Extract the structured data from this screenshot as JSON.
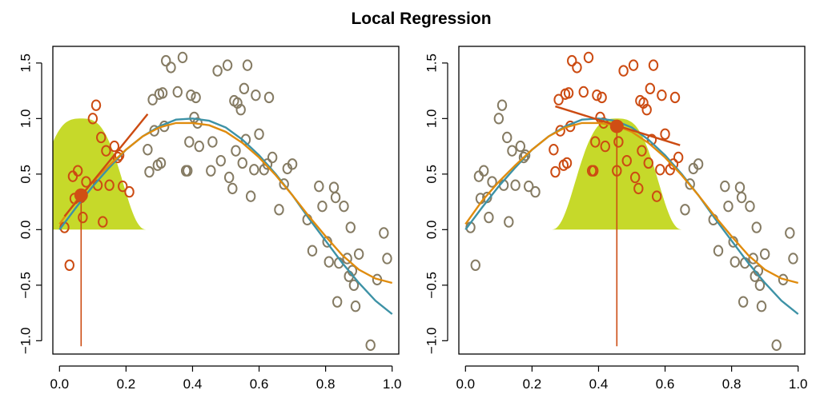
{
  "title": "Local Regression",
  "colors": {
    "data_points": "#857b63",
    "neighborhood_points": "#cc4b12",
    "true_curve": "#3d92a6",
    "fit_curve": "#e08c0e",
    "kernel_fill": "#c6d92a",
    "local_fit": "#cc4b12",
    "target_point": "#d04e14"
  },
  "chart_data": [
    {
      "type": "scatter",
      "title": "",
      "xlabel": "",
      "ylabel": "",
      "xlim": [
        -0.02,
        1.02
      ],
      "ylim": [
        -1.12,
        1.65
      ],
      "xticks": [
        "0.0",
        "0.2",
        "0.4",
        "0.6",
        "0.8",
        "1.0"
      ],
      "yticks": [
        "-1.0",
        "-0.5",
        "0.0",
        "0.5",
        "1.0",
        "1.5"
      ],
      "grid": false,
      "target_x": 0.065,
      "target_y": 0.31,
      "kernel": {
        "center": 0.065,
        "width": 0.2
      },
      "local_line": {
        "x": [
          0.015,
          0.265
        ],
        "y": [
          0.12,
          1.04
        ]
      }
    },
    {
      "type": "scatter",
      "title": "",
      "xlabel": "",
      "ylabel": "",
      "xlim": [
        -0.02,
        1.02
      ],
      "ylim": [
        -1.12,
        1.65
      ],
      "xticks": [
        "0.0",
        "0.2",
        "0.4",
        "0.6",
        "0.8",
        "1.0"
      ],
      "yticks": [
        "-1.0",
        "-0.5",
        "0.0",
        "0.5",
        "1.0",
        "1.5"
      ],
      "grid": false,
      "target_x": 0.455,
      "target_y": 0.93,
      "kernel": {
        "center": 0.455,
        "width": 0.2
      },
      "local_line": {
        "x": [
          0.27,
          0.645
        ],
        "y": [
          1.11,
          0.76
        ]
      }
    }
  ],
  "points": {
    "x": [
      0.015,
      0.03,
      0.04,
      0.045,
      0.055,
      0.065,
      0.07,
      0.08,
      0.1,
      0.11,
      0.115,
      0.125,
      0.13,
      0.14,
      0.15,
      0.165,
      0.175,
      0.18,
      0.19,
      0.21,
      0.265,
      0.27,
      0.28,
      0.285,
      0.295,
      0.3,
      0.305,
      0.31,
      0.315,
      0.32,
      0.335,
      0.355,
      0.37,
      0.38,
      0.385,
      0.39,
      0.395,
      0.405,
      0.41,
      0.415,
      0.42,
      0.455,
      0.46,
      0.475,
      0.485,
      0.505,
      0.51,
      0.52,
      0.525,
      0.53,
      0.535,
      0.545,
      0.55,
      0.555,
      0.56,
      0.565,
      0.575,
      0.585,
      0.59,
      0.6,
      0.615,
      0.625,
      0.63,
      0.64,
      0.66,
      0.675,
      0.685,
      0.7,
      0.745,
      0.76,
      0.78,
      0.79,
      0.805,
      0.81,
      0.825,
      0.83,
      0.835,
      0.84,
      0.855,
      0.865,
      0.87,
      0.875,
      0.88,
      0.885,
      0.89,
      0.9,
      0.935,
      0.955,
      0.975,
      0.985
    ],
    "y": [
      0.02,
      -0.32,
      0.48,
      0.28,
      0.53,
      0.29,
      0.11,
      0.43,
      1.0,
      1.12,
      0.4,
      0.83,
      0.07,
      0.71,
      0.4,
      0.75,
      0.65,
      0.67,
      0.39,
      0.34,
      0.72,
      0.52,
      1.17,
      0.89,
      0.58,
      1.22,
      0.6,
      1.23,
      0.93,
      1.52,
      1.46,
      1.24,
      1.55,
      0.53,
      0.53,
      0.79,
      1.21,
      1.01,
      1.19,
      0.96,
      0.75,
      0.53,
      0.79,
      1.43,
      0.62,
      1.48,
      0.47,
      0.37,
      1.16,
      0.71,
      1.14,
      1.08,
      0.6,
      1.27,
      0.81,
      1.48,
      0.3,
      0.54,
      1.21,
      0.86,
      0.54,
      0.59,
      1.19,
      0.65,
      0.18,
      0.41,
      0.55,
      0.59,
      0.09,
      -0.19,
      0.39,
      0.21,
      -0.11,
      -0.29,
      0.38,
      0.29,
      -0.65,
      -0.3,
      0.21,
      -0.26,
      -0.42,
      0.02,
      -0.37,
      -0.5,
      -0.69,
      -0.22,
      -1.04,
      -0.45,
      -0.03,
      -0.26
    ]
  },
  "true_curve": {
    "x": [
      0.0,
      0.05,
      0.1,
      0.15,
      0.2,
      0.25,
      0.3,
      0.35,
      0.4,
      0.45,
      0.5,
      0.55,
      0.6,
      0.65,
      0.7,
      0.75,
      0.8,
      0.85,
      0.9,
      0.95,
      1.0
    ],
    "y": [
      0.0,
      0.2,
      0.39,
      0.56,
      0.72,
      0.84,
      0.93,
      0.99,
      1.0,
      0.98,
      0.92,
      0.81,
      0.67,
      0.5,
      0.31,
      0.1,
      -0.1,
      -0.3,
      -0.48,
      -0.64,
      -0.76
    ]
  },
  "fit_curve": {
    "x": [
      0.0,
      0.05,
      0.1,
      0.15,
      0.2,
      0.25,
      0.3,
      0.35,
      0.4,
      0.45,
      0.5,
      0.55,
      0.6,
      0.65,
      0.7,
      0.75,
      0.8,
      0.85,
      0.9,
      0.95,
      1.0
    ],
    "y": [
      0.05,
      0.26,
      0.43,
      0.58,
      0.72,
      0.84,
      0.92,
      0.96,
      0.96,
      0.94,
      0.88,
      0.78,
      0.65,
      0.49,
      0.31,
      0.12,
      -0.06,
      -0.23,
      -0.36,
      -0.44,
      -0.48
    ]
  }
}
